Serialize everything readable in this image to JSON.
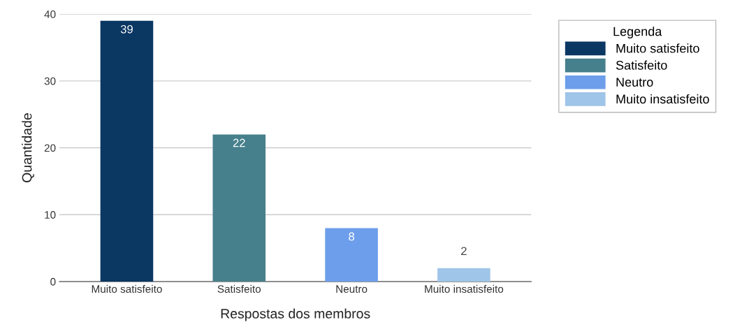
{
  "chart_data": {
    "type": "bar",
    "xlabel": "Respostas dos membros",
    "ylabel": "Quantidade",
    "legend_title": "Legenda",
    "categories": [
      "Muito satisfeito",
      "Satisfeito",
      "Neutro",
      "Muito insatisfeito"
    ],
    "series": [
      {
        "name": "Muito satisfeito",
        "color": "#0b3763",
        "values": [
          39,
          null,
          null,
          null
        ]
      },
      {
        "name": "Satisfeito",
        "color": "#46808c",
        "values": [
          null,
          22,
          null,
          null
        ]
      },
      {
        "name": "Neutro",
        "color": "#6d9eeb",
        "values": [
          null,
          null,
          8,
          null
        ]
      },
      {
        "name": "Muito insatisfeito",
        "color": "#9fc5e8",
        "values": [
          null,
          null,
          null,
          2
        ]
      }
    ],
    "ylim": [
      0,
      40
    ],
    "yticks": [
      0,
      10,
      20,
      30,
      40
    ],
    "grid": "y",
    "legend": "top right",
    "data_labels": true
  }
}
